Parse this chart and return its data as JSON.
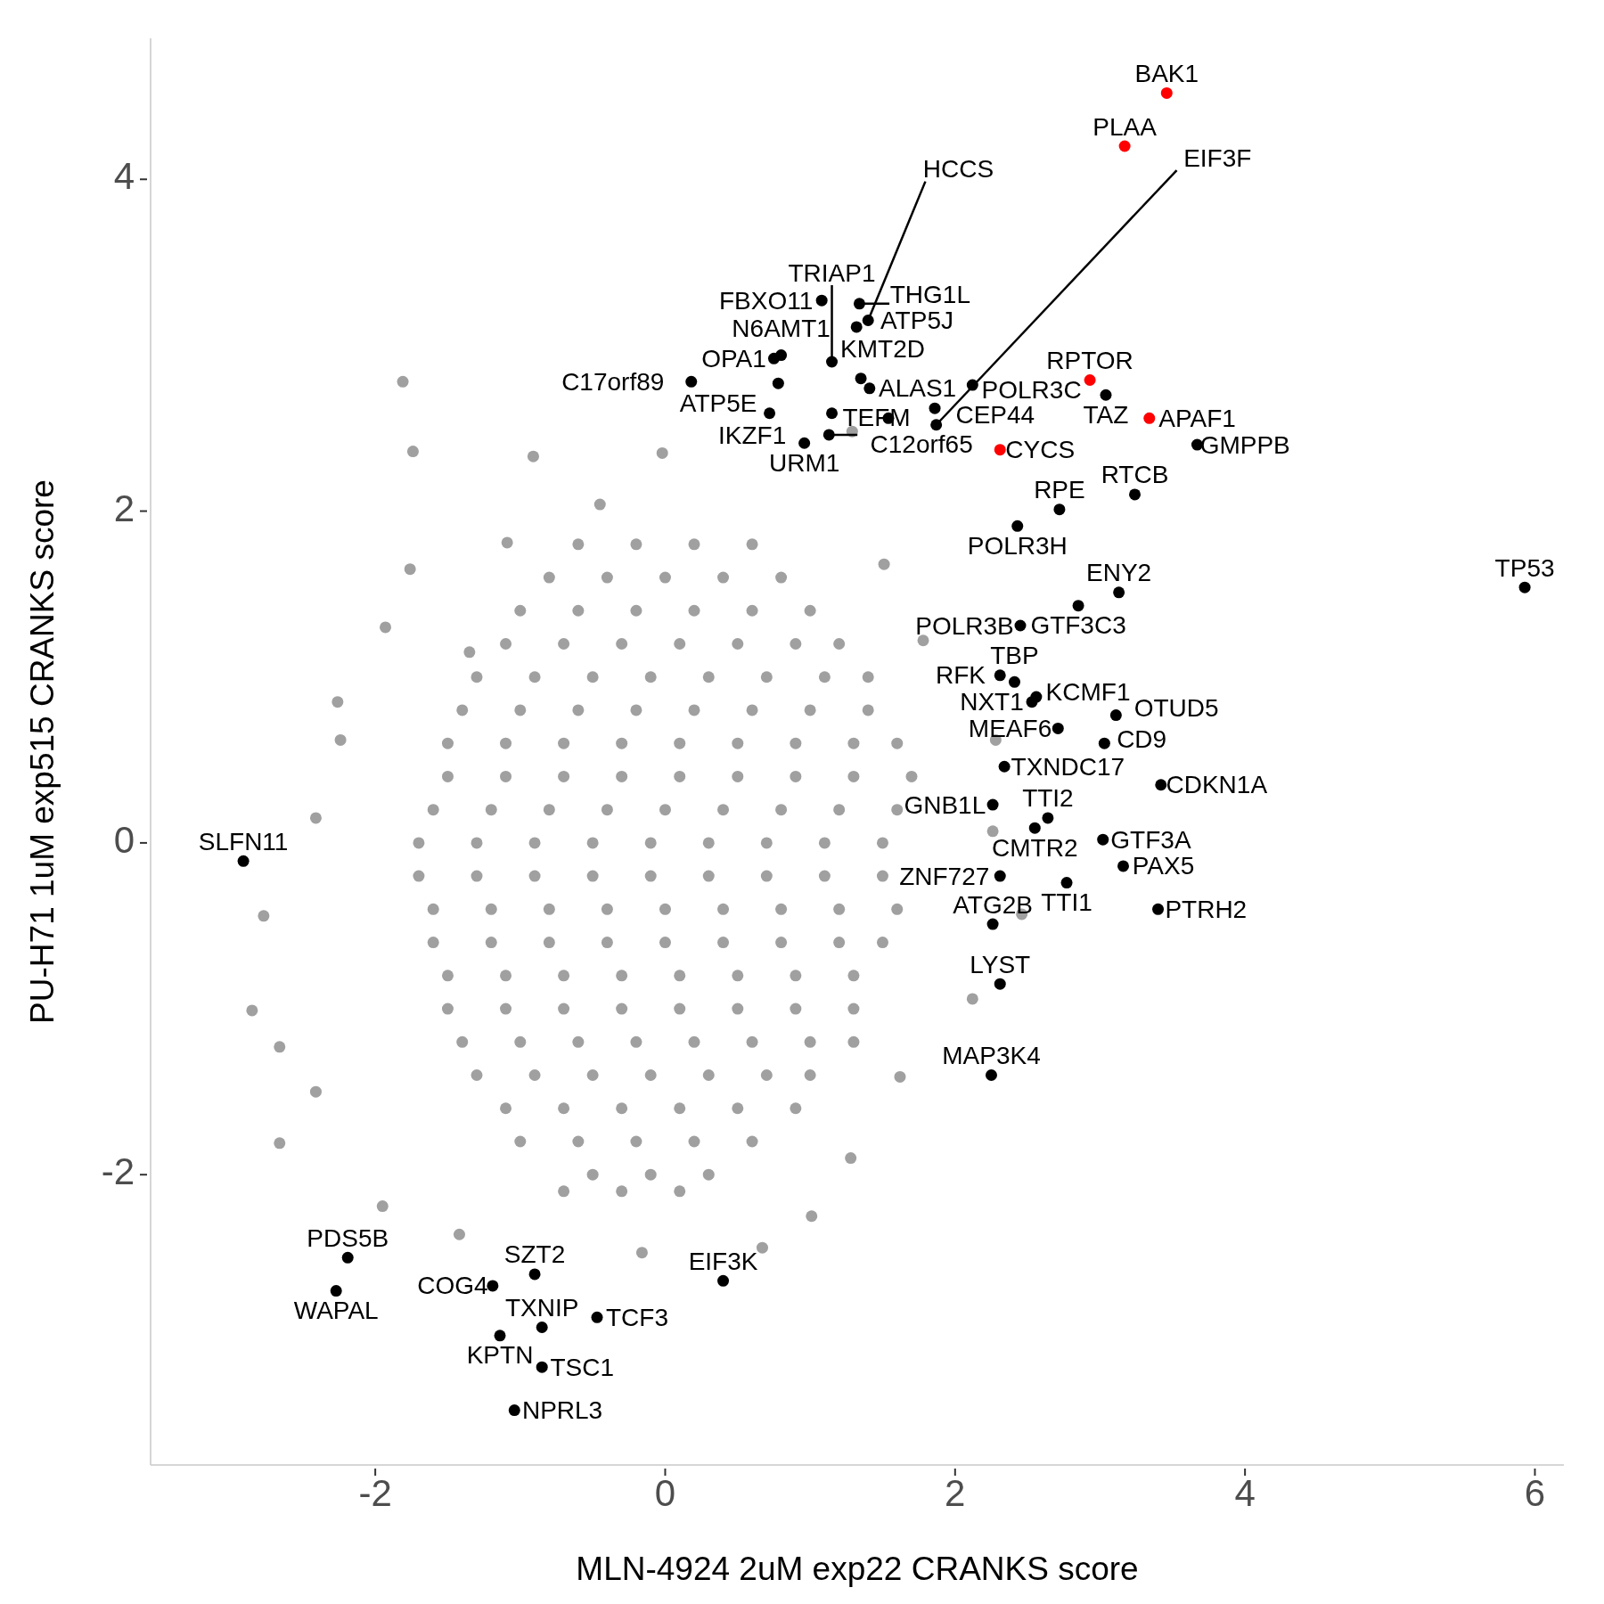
{
  "chart_data": {
    "type": "scatter",
    "xlabel": "MLN-4924 2uM exp22 CRANKS score",
    "ylabel": "PU-H71 1uM exp515 CRANKS score",
    "xlim": [
      -3.55,
      6.2
    ],
    "ylim": [
      -3.75,
      4.85
    ],
    "xticks": [
      -2,
      0,
      2,
      4,
      6
    ],
    "yticks": [
      -2,
      0,
      2,
      4
    ],
    "grid": false,
    "marker": "circle",
    "series": [
      {
        "color": "#a0a0a0",
        "x": [
          -1.81,
          -1.74,
          -0.91,
          -1.76,
          -1.93,
          -2.26,
          -2.24,
          -2.41,
          -2.77,
          -2.85,
          -2.66,
          -2.66,
          -2.41,
          -1.95,
          -1.42,
          -0.16,
          0.67,
          1.01,
          1.28,
          1.62,
          2.12,
          2.46,
          2.26,
          2.28,
          1.78,
          1.51,
          1.29,
          -0.02,
          -0.45,
          -1.09,
          -1.35,
          -0.6,
          -0.2,
          0.2,
          0.6,
          -1.0,
          -0.6,
          -0.2,
          0.2,
          0.6,
          1.0,
          -1.3,
          -0.9,
          -0.5,
          -0.1,
          0.3,
          0.7,
          1.1,
          1.4,
          -1.5,
          -1.1,
          -0.7,
          -0.3,
          0.1,
          0.5,
          0.9,
          1.3,
          1.6,
          -1.6,
          -1.2,
          -0.8,
          -0.4,
          0.0,
          0.4,
          0.8,
          1.2,
          1.6,
          -1.7,
          -1.3,
          -0.9,
          -0.5,
          -0.1,
          0.3,
          0.7,
          1.1,
          1.5,
          -1.6,
          -1.2,
          -0.8,
          -0.4,
          0.0,
          0.4,
          0.8,
          1.2,
          1.5,
          -1.5,
          -1.1,
          -0.7,
          -0.3,
          0.1,
          0.5,
          0.9,
          1.3,
          -1.3,
          -0.9,
          -0.5,
          -0.1,
          0.3,
          0.7,
          1.0,
          -1.0,
          -0.6,
          -0.2,
          0.2,
          0.6,
          -0.7,
          -0.3,
          0.1,
          -0.8,
          -0.4,
          0.0,
          0.4,
          0.8,
          -1.1,
          -0.7,
          -0.3,
          0.1,
          0.5,
          0.9,
          1.2,
          -1.4,
          -1.0,
          -0.6,
          -0.2,
          0.2,
          0.6,
          1.0,
          1.4,
          -1.5,
          -1.1,
          -0.7,
          -0.3,
          0.1,
          0.5,
          0.9,
          1.3,
          1.7,
          -1.7,
          -1.3,
          -0.9,
          -0.5,
          -0.1,
          0.3,
          0.7,
          1.1,
          1.5,
          -1.6,
          -1.2,
          -0.8,
          -0.4,
          0.0,
          0.4,
          0.8,
          1.2,
          1.6,
          -1.5,
          -1.1,
          -0.7,
          -0.3,
          0.1,
          0.5,
          0.9,
          1.3,
          -1.4,
          -1.0,
          -0.6,
          -0.2,
          0.2,
          0.6,
          1.0,
          1.3,
          -1.1,
          -0.7,
          -0.3,
          0.1,
          0.5,
          0.9,
          -0.5,
          -0.1,
          0.3
        ],
        "values": [
          2.78,
          2.36,
          2.33,
          1.65,
          1.3,
          0.85,
          0.62,
          0.15,
          -0.44,
          -1.01,
          -1.23,
          -1.81,
          -1.5,
          -2.19,
          -2.36,
          -2.47,
          -2.44,
          -2.25,
          -1.9,
          -1.41,
          -0.94,
          -0.43,
          0.07,
          0.62,
          1.22,
          1.68,
          2.48,
          2.35,
          2.04,
          1.81,
          1.15,
          1.8,
          1.8,
          1.8,
          1.8,
          1.4,
          1.4,
          1.4,
          1.4,
          1.4,
          1.4,
          1.0,
          1.0,
          1.0,
          1.0,
          1.0,
          1.0,
          1.0,
          1.0,
          0.6,
          0.6,
          0.6,
          0.6,
          0.6,
          0.6,
          0.6,
          0.6,
          0.6,
          0.2,
          0.2,
          0.2,
          0.2,
          0.2,
          0.2,
          0.2,
          0.2,
          0.2,
          -0.2,
          -0.2,
          -0.2,
          -0.2,
          -0.2,
          -0.2,
          -0.2,
          -0.2,
          -0.2,
          -0.6,
          -0.6,
          -0.6,
          -0.6,
          -0.6,
          -0.6,
          -0.6,
          -0.6,
          -0.6,
          -1.0,
          -1.0,
          -1.0,
          -1.0,
          -1.0,
          -1.0,
          -1.0,
          -1.0,
          -1.4,
          -1.4,
          -1.4,
          -1.4,
          -1.4,
          -1.4,
          -1.4,
          -1.8,
          -1.8,
          -1.8,
          -1.8,
          -1.8,
          -2.1,
          -2.1,
          -2.1,
          1.6,
          1.6,
          1.6,
          1.6,
          1.6,
          1.2,
          1.2,
          1.2,
          1.2,
          1.2,
          1.2,
          1.2,
          0.8,
          0.8,
          0.8,
          0.8,
          0.8,
          0.8,
          0.8,
          0.8,
          0.4,
          0.4,
          0.4,
          0.4,
          0.4,
          0.4,
          0.4,
          0.4,
          0.4,
          0.0,
          0.0,
          0.0,
          0.0,
          0.0,
          0.0,
          0.0,
          0.0,
          0.0,
          -0.4,
          -0.4,
          -0.4,
          -0.4,
          -0.4,
          -0.4,
          -0.4,
          -0.4,
          -0.4,
          -0.8,
          -0.8,
          -0.8,
          -0.8,
          -0.8,
          -0.8,
          -0.8,
          -0.8,
          -1.2,
          -1.2,
          -1.2,
          -1.2,
          -1.2,
          -1.2,
          -1.2,
          -1.2,
          -1.6,
          -1.6,
          -1.6,
          -1.6,
          -1.6,
          -1.6,
          -2.0,
          -2.0,
          -2.0
        ]
      },
      {
        "color": "#000000",
        "x": [
          1.08,
          1.34,
          1.4,
          1.32,
          0.75,
          0.8,
          1.15,
          0.18,
          0.78,
          1.35,
          1.41,
          2.12,
          0.72,
          1.15,
          1.54,
          1.86,
          1.87,
          3.04,
          0.96,
          1.13,
          3.67,
          3.24,
          2.72,
          2.43,
          5.93,
          3.13,
          2.85,
          2.45,
          2.31,
          2.41,
          2.56,
          2.53,
          3.11,
          2.71,
          3.03,
          2.34,
          3.42,
          2.26,
          2.64,
          2.55,
          3.02,
          3.16,
          -2.91,
          2.31,
          2.77,
          3.4,
          2.26,
          2.31,
          2.25,
          -2.19,
          -2.27,
          -0.9,
          -1.19,
          0.4,
          -0.47,
          -0.85,
          -1.14,
          -0.85,
          -1.04
        ],
        "values": [
          3.27,
          3.25,
          3.15,
          3.11,
          2.92,
          2.94,
          2.9,
          2.78,
          2.77,
          2.8,
          2.74,
          2.76,
          2.59,
          2.59,
          2.56,
          2.62,
          2.52,
          2.7,
          2.41,
          2.46,
          2.4,
          2.1,
          2.01,
          1.91,
          1.54,
          1.51,
          1.43,
          1.31,
          1.01,
          0.97,
          0.88,
          0.85,
          0.77,
          0.69,
          0.6,
          0.46,
          0.35,
          0.23,
          0.15,
          0.09,
          0.02,
          -0.14,
          -0.11,
          -0.2,
          -0.24,
          -0.4,
          -0.49,
          -0.85,
          -1.4,
          -2.5,
          -2.7,
          -2.6,
          -2.67,
          -2.64,
          -2.86,
          -2.92,
          -2.97,
          -3.16,
          -3.42
        ]
      },
      {
        "color": "#ff0000",
        "x": [
          3.46,
          3.17,
          2.93,
          3.34,
          2.31
        ],
        "values": [
          4.52,
          4.2,
          2.79,
          2.56,
          2.37
        ]
      }
    ],
    "annotations": [
      {
        "text": "BAK1",
        "x": 3.46,
        "y": 4.52
      },
      {
        "text": "PLAA",
        "x": 3.17,
        "y": 4.2
      },
      {
        "text": "THG1L",
        "x": 1.34,
        "y": 3.25
      },
      {
        "text": "FBXO11",
        "x": 1.08,
        "y": 3.27
      },
      {
        "text": "ATP5J",
        "x": 1.32,
        "y": 3.11
      },
      {
        "text": "HCCS",
        "x": 1.4,
        "y": 3.15
      },
      {
        "text": "RPTOR",
        "x": 2.93,
        "y": 2.79
      },
      {
        "text": "OPA1",
        "x": 0.75,
        "y": 2.92
      },
      {
        "text": "N6AMT1",
        "x": 0.8,
        "y": 2.94
      },
      {
        "text": "TRIAP1",
        "x": 1.15,
        "y": 2.9
      },
      {
        "text": "KMT2D",
        "x": 1.35,
        "y": 2.8
      },
      {
        "text": "POLR3C",
        "x": 2.12,
        "y": 2.76
      },
      {
        "text": "C17orf89",
        "x": 0.18,
        "y": 2.78
      },
      {
        "text": "ATP5E",
        "x": 0.78,
        "y": 2.77
      },
      {
        "text": "APAF1",
        "x": 3.34,
        "y": 2.56
      },
      {
        "text": "CYCS",
        "x": 2.31,
        "y": 2.37
      },
      {
        "text": "IKZF1",
        "x": 0.72,
        "y": 2.59
      },
      {
        "text": "TEFM",
        "x": 1.15,
        "y": 2.59
      },
      {
        "text": "TAZ",
        "x": 3.04,
        "y": 2.7
      },
      {
        "text": "ALAS1",
        "x": 1.41,
        "y": 2.74
      },
      {
        "text": "GMPPB",
        "x": 3.67,
        "y": 2.4
      },
      {
        "text": "CEP44",
        "x": 1.86,
        "y": 2.62
      },
      {
        "text": "URM1",
        "x": 0.96,
        "y": 2.41
      },
      {
        "text": "C12orf65",
        "x": 1.13,
        "y": 2.46
      },
      {
        "text": "RTCB",
        "x": 3.24,
        "y": 2.1
      },
      {
        "text": "EIF3F",
        "x": 1.87,
        "y": 2.52
      },
      {
        "text": "RPE",
        "x": 2.72,
        "y": 2.01
      },
      {
        "text": "ENY2",
        "x": 3.13,
        "y": 1.51
      },
      {
        "text": "TP53",
        "x": 5.93,
        "y": 1.54
      },
      {
        "text": "POLR3H",
        "x": 2.43,
        "y": 1.91
      },
      {
        "text": "POLR3B",
        "x": 2.45,
        "y": 1.31
      },
      {
        "text": "GTF3C3",
        "x": 2.85,
        "y": 1.43
      },
      {
        "text": "TBP",
        "x": 2.41,
        "y": 0.97
      },
      {
        "text": "KCMF1",
        "x": 2.56,
        "y": 0.88
      },
      {
        "text": "OTUD5",
        "x": 3.11,
        "y": 0.77
      },
      {
        "text": "RFK",
        "x": 2.31,
        "y": 1.01
      },
      {
        "text": "NXT1",
        "x": 2.53,
        "y": 0.85
      },
      {
        "text": "CD9",
        "x": 3.03,
        "y": 0.6
      },
      {
        "text": "TXNDC17",
        "x": 2.34,
        "y": 0.46
      },
      {
        "text": "MEAF6",
        "x": 2.71,
        "y": 0.69
      },
      {
        "text": "CDKN1A",
        "x": 3.42,
        "y": 0.35
      },
      {
        "text": "TTI2",
        "x": 2.64,
        "y": 0.15
      },
      {
        "text": "GNB1L",
        "x": 2.26,
        "y": 0.23
      },
      {
        "text": "GTF3A",
        "x": 3.02,
        "y": 0.02
      },
      {
        "text": "CMTR2",
        "x": 2.55,
        "y": 0.09
      },
      {
        "text": "PAX5",
        "x": 3.16,
        "y": -0.14
      },
      {
        "text": "SLFN11",
        "x": -2.91,
        "y": -0.11
      },
      {
        "text": "ZNF727",
        "x": 2.31,
        "y": -0.2
      },
      {
        "text": "TTI1",
        "x": 2.77,
        "y": -0.24
      },
      {
        "text": "PTRH2",
        "x": 3.4,
        "y": -0.4
      },
      {
        "text": "ATG2B",
        "x": 2.26,
        "y": -0.49
      },
      {
        "text": "LYST",
        "x": 2.31,
        "y": -0.85
      },
      {
        "text": "MAP3K4",
        "x": 2.25,
        "y": -1.4
      },
      {
        "text": "PDS5B",
        "x": -2.19,
        "y": -2.5
      },
      {
        "text": "EIF3K",
        "x": 0.4,
        "y": -2.64
      },
      {
        "text": "SZT2",
        "x": -0.9,
        "y": -2.6
      },
      {
        "text": "WAPAL",
        "x": -2.27,
        "y": -2.7
      },
      {
        "text": "COG4",
        "x": -1.19,
        "y": -2.67
      },
      {
        "text": "TXNIP",
        "x": -0.85,
        "y": -2.92
      },
      {
        "text": "TCF3",
        "x": -0.47,
        "y": -2.86
      },
      {
        "text": "KPTN",
        "x": -1.14,
        "y": -2.97
      },
      {
        "text": "TSC1",
        "x": -0.85,
        "y": -3.16
      },
      {
        "text": "NPRL3",
        "x": -1.04,
        "y": -3.42
      }
    ]
  }
}
